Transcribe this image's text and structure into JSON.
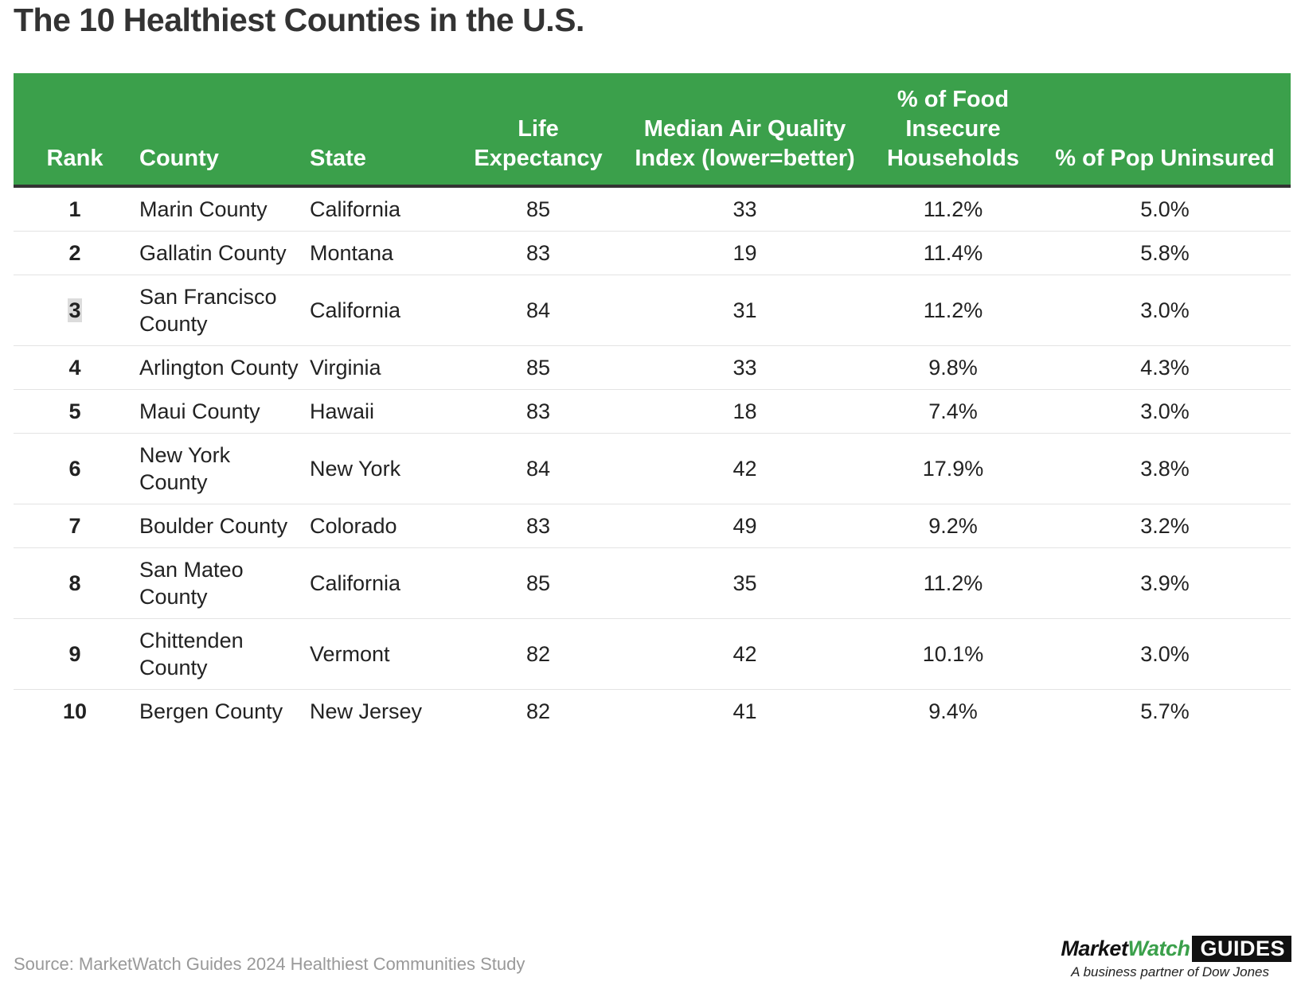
{
  "title": "The 10 Healthiest Counties in the U.S.",
  "source": "Source: MarketWatch Guides 2024 Healthiest Communities Study",
  "brand": {
    "market": "Market",
    "watch": "Watch",
    "guides": "GUIDES",
    "tagline": "A business partner of Dow Jones"
  },
  "colors": {
    "header_bg": "#3ba04b",
    "header_text": "#ffffff",
    "accent": "#3ba04b"
  },
  "chart_data": {
    "type": "table",
    "title": "The 10 Healthiest Counties in the U.S.",
    "columns": [
      "Rank",
      "County",
      "State",
      "Life Expectancy",
      "Median Air Quality Index (lower=better)",
      "% of Food Insecure Households",
      "% of Pop Uninsured"
    ],
    "rows": [
      [
        "1",
        "Marin County",
        "California",
        "85",
        "33",
        "11.2%",
        "5.0%"
      ],
      [
        "2",
        "Gallatin County",
        "Montana",
        "83",
        "19",
        "11.4%",
        "5.8%"
      ],
      [
        "3",
        "San Francisco County",
        "California",
        "84",
        "31",
        "11.2%",
        "3.0%"
      ],
      [
        "4",
        "Arlington County",
        "Virginia",
        "85",
        "33",
        "9.8%",
        "4.3%"
      ],
      [
        "5",
        "Maui County",
        "Hawaii",
        "83",
        "18",
        "7.4%",
        "3.0%"
      ],
      [
        "6",
        "New York County",
        "New York",
        "84",
        "42",
        "17.9%",
        "3.8%"
      ],
      [
        "7",
        "Boulder County",
        "Colorado",
        "83",
        "49",
        "9.2%",
        "3.2%"
      ],
      [
        "8",
        "San Mateo County",
        "California",
        "85",
        "35",
        "11.2%",
        "3.9%"
      ],
      [
        "9",
        "Chittenden County",
        "Vermont",
        "82",
        "42",
        "10.1%",
        "3.0%"
      ],
      [
        "10",
        "Bergen County",
        "New Jersey",
        "82",
        "41",
        "9.4%",
        "5.7%"
      ]
    ]
  }
}
